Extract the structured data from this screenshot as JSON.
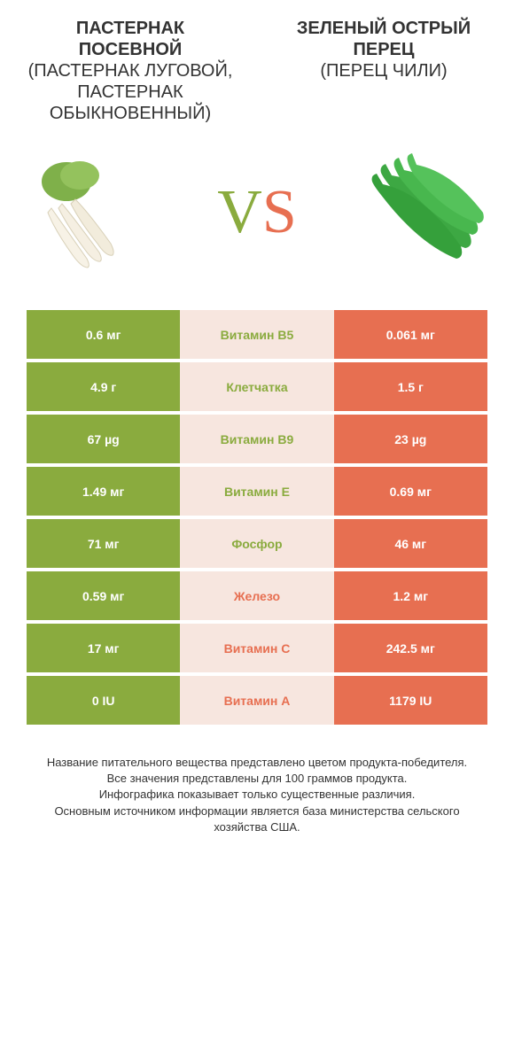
{
  "colors": {
    "green": "#8aab3e",
    "orange": "#e76f51",
    "mid_bg": "#f7e6df",
    "white": "#ffffff",
    "text": "#333333"
  },
  "header": {
    "left_title": "ПАСТЕРНАК ПОСЕВНОЙ",
    "left_sub": "(ПАСТЕРНАК ЛУГОВОЙ, ПАСТЕРНАК ОБЫКНОВЕННЫЙ)",
    "right_title": "ЗЕЛЕНЫЙ ОСТРЫЙ ПЕРЕЦ",
    "right_sub": "(ПЕРЕЦ ЧИЛИ)"
  },
  "vs": {
    "v": "V",
    "s": "S"
  },
  "rows": [
    {
      "left": "0.6 мг",
      "label": "Витамин B5",
      "right": "0.061 мг",
      "winner": "left"
    },
    {
      "left": "4.9 г",
      "label": "Клетчатка",
      "right": "1.5 г",
      "winner": "left"
    },
    {
      "left": "67 µg",
      "label": "Витамин B9",
      "right": "23 µg",
      "winner": "left"
    },
    {
      "left": "1.49 мг",
      "label": "Витамин E",
      "right": "0.69 мг",
      "winner": "left"
    },
    {
      "left": "71 мг",
      "label": "Фосфор",
      "right": "46 мг",
      "winner": "left"
    },
    {
      "left": "0.59 мг",
      "label": "Железо",
      "right": "1.2 мг",
      "winner": "right"
    },
    {
      "left": "17 мг",
      "label": "Витамин C",
      "right": "242.5 мг",
      "winner": "right"
    },
    {
      "left": "0 IU",
      "label": "Витамин A",
      "right": "1179 IU",
      "winner": "right"
    }
  ],
  "footer": {
    "line1": "Название питательного вещества представлено цветом продукта-победителя.",
    "line2": "Все значения представлены для 100 граммов продукта.",
    "line3": "Инфографика показывает только существенные различия.",
    "line4": "Основным источником информации является база министерства сельского хозяйства США."
  }
}
